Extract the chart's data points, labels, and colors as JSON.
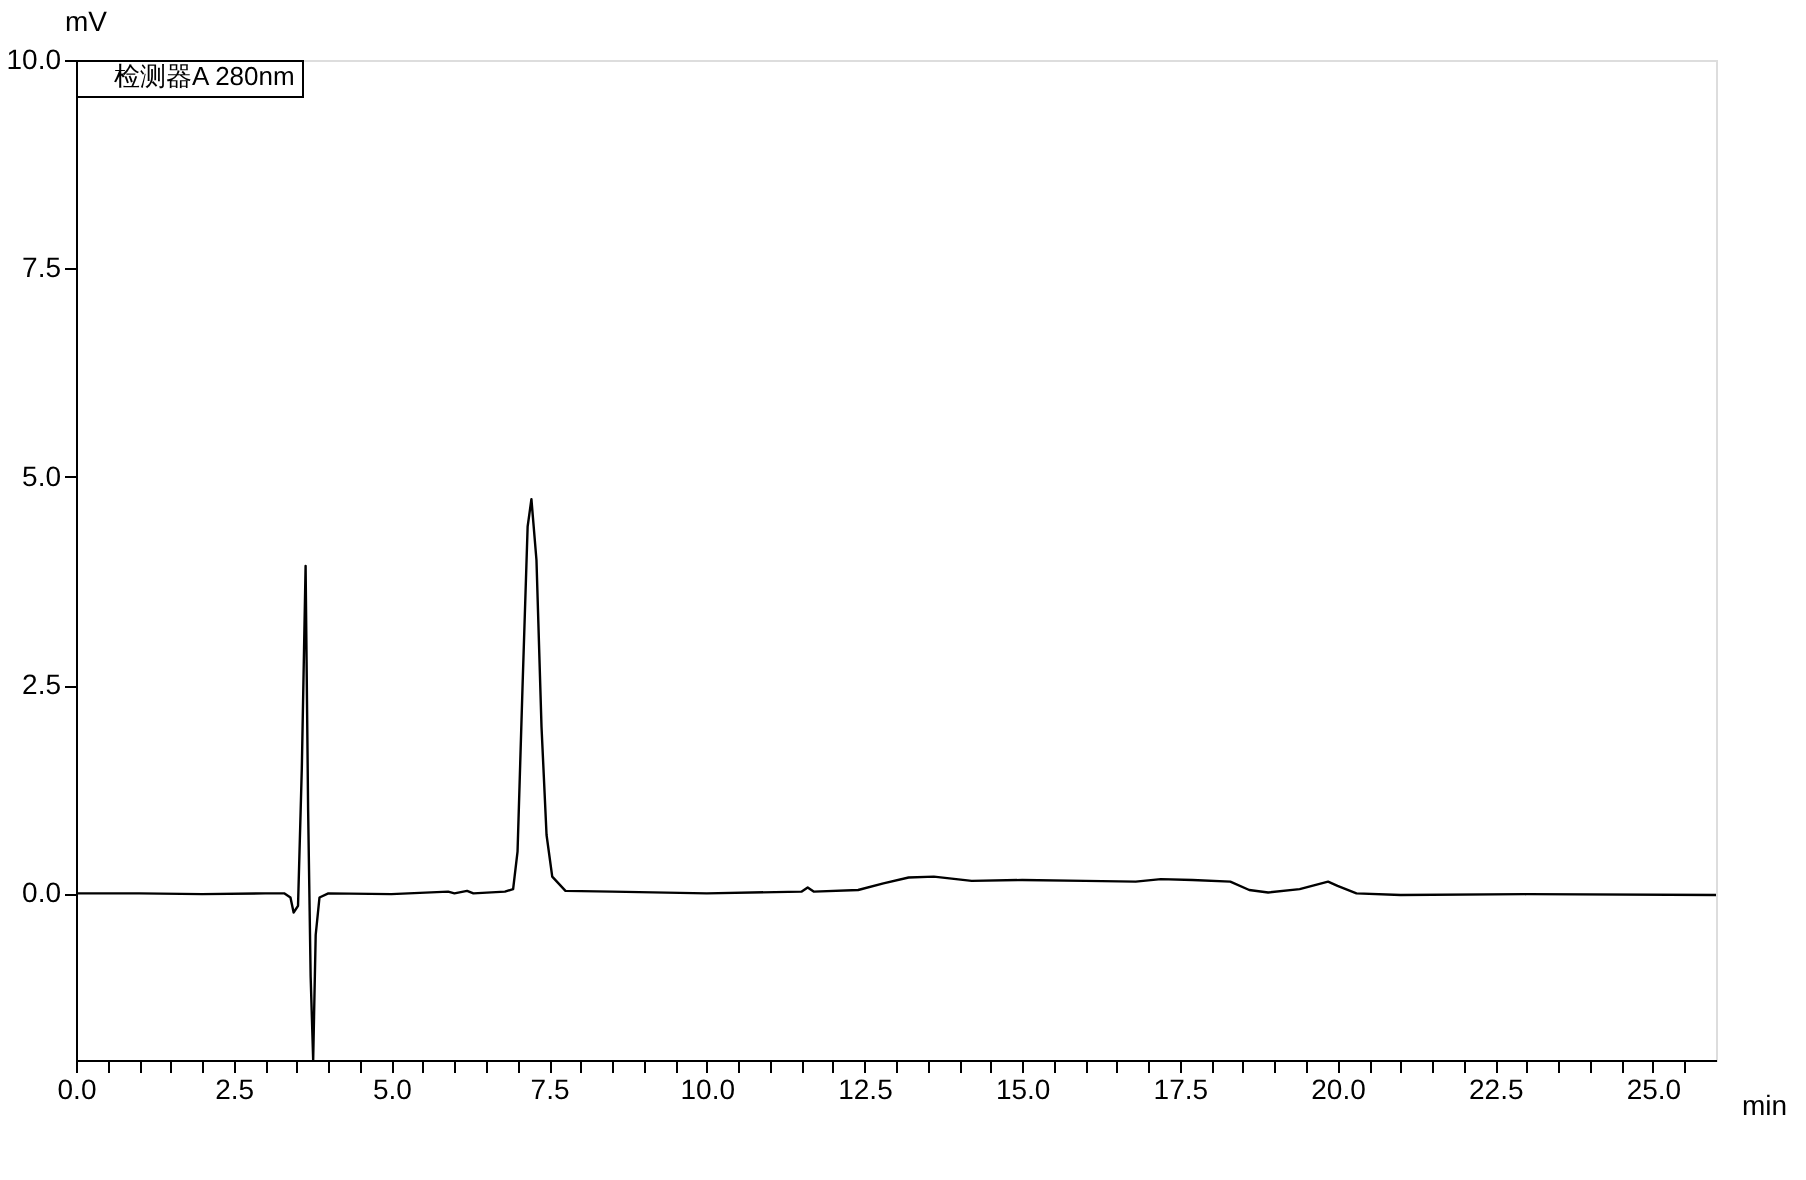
{
  "chart_data": {
    "type": "line",
    "xlabel": "min",
    "ylabel": "mV",
    "xlim": [
      0,
      26.0
    ],
    "ylim": [
      -2.0,
      10.0
    ],
    "xticks": [
      {
        "value": 0,
        "label": "0.0"
      },
      {
        "value": 0.5,
        "label": null
      },
      {
        "value": 1,
        "label": null
      },
      {
        "value": 1.5,
        "label": null
      },
      {
        "value": 2,
        "label": null
      },
      {
        "value": 2.5,
        "label": "2.5"
      },
      {
        "value": 3,
        "label": null
      },
      {
        "value": 3.5,
        "label": null
      },
      {
        "value": 4,
        "label": null
      },
      {
        "value": 4.5,
        "label": null
      },
      {
        "value": 5,
        "label": "5.0"
      },
      {
        "value": 5.5,
        "label": null
      },
      {
        "value": 6,
        "label": null
      },
      {
        "value": 6.5,
        "label": null
      },
      {
        "value": 7,
        "label": null
      },
      {
        "value": 7.5,
        "label": "7.5"
      },
      {
        "value": 8,
        "label": null
      },
      {
        "value": 8.5,
        "label": null
      },
      {
        "value": 9,
        "label": null
      },
      {
        "value": 9.5,
        "label": null
      },
      {
        "value": 10,
        "label": "10.0"
      },
      {
        "value": 10.5,
        "label": null
      },
      {
        "value": 11,
        "label": null
      },
      {
        "value": 11.5,
        "label": null
      },
      {
        "value": 12,
        "label": null
      },
      {
        "value": 12.5,
        "label": "12.5"
      },
      {
        "value": 13,
        "label": null
      },
      {
        "value": 13.5,
        "label": null
      },
      {
        "value": 14,
        "label": null
      },
      {
        "value": 14.5,
        "label": null
      },
      {
        "value": 15,
        "label": "15.0"
      },
      {
        "value": 15.5,
        "label": null
      },
      {
        "value": 16,
        "label": null
      },
      {
        "value": 16.5,
        "label": null
      },
      {
        "value": 17,
        "label": null
      },
      {
        "value": 17.5,
        "label": "17.5"
      },
      {
        "value": 18,
        "label": null
      },
      {
        "value": 18.5,
        "label": null
      },
      {
        "value": 19,
        "label": null
      },
      {
        "value": 19.5,
        "label": null
      },
      {
        "value": 20,
        "label": "20.0"
      },
      {
        "value": 20.5,
        "label": null
      },
      {
        "value": 21,
        "label": null
      },
      {
        "value": 21.5,
        "label": null
      },
      {
        "value": 22,
        "label": null
      },
      {
        "value": 22.5,
        "label": "22.5"
      },
      {
        "value": 23,
        "label": null
      },
      {
        "value": 23.5,
        "label": null
      },
      {
        "value": 24,
        "label": null
      },
      {
        "value": 24.5,
        "label": null
      },
      {
        "value": 25,
        "label": "25.0"
      },
      {
        "value": 25.5,
        "label": null
      }
    ],
    "yticks": [
      {
        "value": 0,
        "label": "0.0"
      },
      {
        "value": 2.5,
        "label": "2.5"
      },
      {
        "value": 5,
        "label": "5.0"
      },
      {
        "value": 7.5,
        "label": "7.5"
      },
      {
        "value": 10,
        "label": "10.0"
      }
    ],
    "grid": false,
    "legend": "top left",
    "marker": "none",
    "line_style": "solid",
    "series": [
      {
        "name": "检测器A 280nm",
        "color": "#000000",
        "x": [
          0,
          1,
          2,
          3,
          3.3,
          3.4,
          3.45,
          3.52,
          3.58,
          3.64,
          3.68,
          3.72,
          3.76,
          3.8,
          3.86,
          4.0,
          5,
          5.9,
          6.0,
          6.2,
          6.3,
          6.8,
          6.93,
          7.0,
          7.08,
          7.16,
          7.22,
          7.3,
          7.38,
          7.46,
          7.55,
          7.76,
          8.5,
          10,
          11.5,
          11.6,
          11.7,
          12.4,
          12.8,
          13.2,
          13.6,
          14.2,
          15.0,
          16,
          16.8,
          17.2,
          17.7,
          18.3,
          18.6,
          18.9,
          19.4,
          19.85,
          20.0,
          20.3,
          21,
          23,
          26
        ],
        "values": [
          0,
          0,
          -0.01,
          0,
          0,
          -0.05,
          -0.23,
          -0.15,
          1.5,
          3.93,
          1.0,
          -1.0,
          -2.0,
          -0.5,
          -0.05,
          0,
          -0.01,
          0.02,
          0,
          0.03,
          0,
          0.02,
          0.05,
          0.5,
          2.5,
          4.4,
          4.73,
          4.0,
          2.0,
          0.7,
          0.2,
          0.03,
          0.02,
          0,
          0.02,
          0.07,
          0.02,
          0.04,
          0.12,
          0.19,
          0.2,
          0.15,
          0.16,
          0.15,
          0.14,
          0.17,
          0.16,
          0.14,
          0.04,
          0.01,
          0.05,
          0.14,
          0.09,
          0,
          -0.02,
          -0.01,
          -0.02
        ]
      }
    ]
  }
}
